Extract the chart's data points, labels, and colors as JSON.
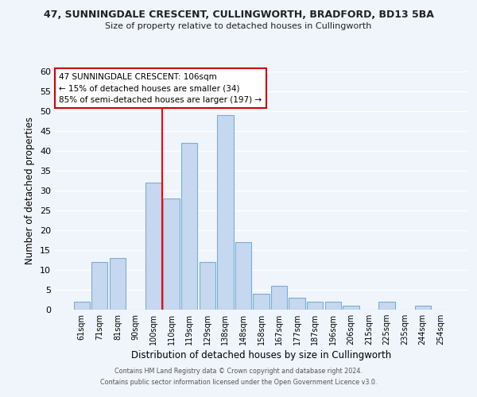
{
  "title1": "47, SUNNINGDALE CRESCENT, CULLINGWORTH, BRADFORD, BD13 5BA",
  "title2": "Size of property relative to detached houses in Cullingworth",
  "xlabel": "Distribution of detached houses by size in Cullingworth",
  "ylabel": "Number of detached properties",
  "bar_labels": [
    "61sqm",
    "71sqm",
    "81sqm",
    "90sqm",
    "100sqm",
    "110sqm",
    "119sqm",
    "129sqm",
    "138sqm",
    "148sqm",
    "158sqm",
    "167sqm",
    "177sqm",
    "187sqm",
    "196sqm",
    "206sqm",
    "215sqm",
    "225sqm",
    "235sqm",
    "244sqm",
    "254sqm"
  ],
  "bar_values": [
    2,
    12,
    13,
    0,
    32,
    28,
    42,
    12,
    49,
    17,
    4,
    6,
    3,
    2,
    2,
    1,
    0,
    2,
    0,
    1,
    0
  ],
  "bar_color": "#c5d8f0",
  "bar_edge_color": "#7aadd4",
  "vline_color": "red",
  "ylim": [
    0,
    60
  ],
  "yticks": [
    0,
    5,
    10,
    15,
    20,
    25,
    30,
    35,
    40,
    45,
    50,
    55,
    60
  ],
  "annotation_line1": "47 SUNNINGDALE CRESCENT: 106sqm",
  "annotation_line2": "← 15% of detached houses are smaller (34)",
  "annotation_line3": "85% of semi-detached houses are larger (197) →",
  "footer1": "Contains HM Land Registry data © Crown copyright and database right 2024.",
  "footer2": "Contains public sector information licensed under the Open Government Licence v3.0.",
  "background_color": "#f0f5fb",
  "grid_color": "#ffffff"
}
